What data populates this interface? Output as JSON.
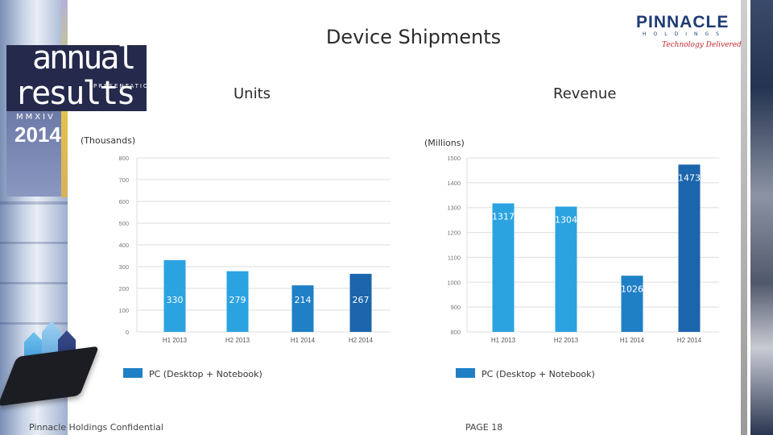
{
  "page_title": "Device Shipments",
  "brand": {
    "name": "PINNACLE",
    "sub": "HOLDINGS",
    "tagline": "Technology Delivered"
  },
  "logo": {
    "line1": "annual",
    "line2": "results",
    "line3": "PRESENTATION",
    "roman": "MMXIV",
    "year": "2014"
  },
  "footer": {
    "confidential": "Pinnacle Holdings Confidential",
    "page": "PAGE 18"
  },
  "colors": {
    "bar_light": "#2ba3e1",
    "bar_mid": "#1f80c6",
    "bar_dark": "#1b65ad",
    "grid": "#dddddd",
    "brand_blue": "#1f3b73"
  },
  "chart_data": [
    {
      "type": "bar",
      "title": "Units",
      "ylabel": "(Thousands)",
      "categories": [
        "H1 2013",
        "H2 2013",
        "H1 2014",
        "H2 2014"
      ],
      "values": [
        330,
        279,
        214,
        267
      ],
      "value_labels": [
        "330",
        "279",
        "214",
        "267"
      ],
      "ylim": [
        0,
        800
      ],
      "yticks": [
        "0",
        "100",
        "200",
        "300",
        "400",
        "500",
        "600",
        "700",
        "800"
      ],
      "grid": true,
      "legend": [
        "PC (Desktop + Notebook)"
      ],
      "legend_position": "bottom"
    },
    {
      "type": "bar",
      "title": "Revenue",
      "ylabel": "(Millions)",
      "categories": [
        "H1 2013",
        "H2 2013",
        "H1 2014",
        "H2 2014"
      ],
      "values": [
        1317,
        1304,
        1026,
        1473
      ],
      "value_labels": [
        "1317",
        "1304",
        "1026",
        "1473"
      ],
      "ylim": [
        800,
        1500
      ],
      "yticks": [
        "800",
        "900",
        "1000",
        "1100",
        "1200",
        "1300",
        "1400",
        "1500"
      ],
      "grid": true,
      "legend": [
        "PC (Desktop + Notebook)"
      ],
      "legend_position": "bottom"
    }
  ]
}
